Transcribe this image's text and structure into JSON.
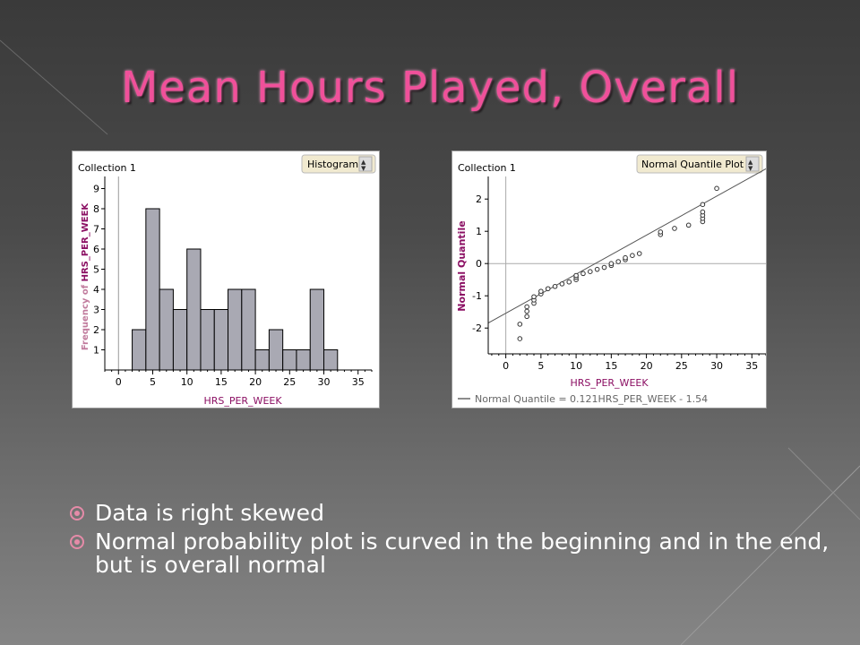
{
  "slide": {
    "title": "Mean Hours Played, Overall",
    "bullets": [
      "Data is right skewed",
      "Normal probability plot is curved in the beginning and in the end, but is overall normal"
    ]
  },
  "colors": {
    "title": "#f0509a",
    "bar": "#a9a9b3",
    "point": "#333333",
    "axis_label": "#8b0f63"
  },
  "histogram": {
    "collection_label": "Collection 1",
    "dropdown_value": "Histogram",
    "xlabel": "HRS_PER_WEEK",
    "ylabel_prefix": "Frequency of ",
    "ylabel_var": "HRS_PER_WEEK"
  },
  "qq": {
    "collection_label": "Collection 1",
    "dropdown_value": "Normal Quantile Plot",
    "xlabel": "HRS_PER_WEEK",
    "ylabel": "Normal Quantile",
    "legend": "Normal Quantile = 0.121HRS_PER_WEEK - 1.54"
  },
  "chart_data": [
    {
      "type": "bar",
      "title": "",
      "xlabel": "HRS_PER_WEEK",
      "ylabel": "Frequency of HRS_PER_WEEK",
      "bin_width": 2,
      "bins_start": [
        2,
        4,
        6,
        8,
        10,
        12,
        14,
        16,
        18,
        20,
        22,
        24,
        26,
        28,
        30
      ],
      "values": [
        2,
        8,
        4,
        3,
        6,
        3,
        3,
        4,
        4,
        1,
        2,
        1,
        1,
        4,
        1
      ],
      "xlim": [
        -2,
        37
      ],
      "ylim": [
        0,
        9.6
      ],
      "xticks": [
        0,
        5,
        10,
        15,
        20,
        25,
        30,
        35
      ],
      "yticks": [
        1,
        2,
        3,
        4,
        5,
        6,
        7,
        8,
        9
      ]
    },
    {
      "type": "scatter",
      "title": "",
      "xlabel": "HRS_PER_WEEK",
      "ylabel": "Normal Quantile",
      "xlim": [
        -2.5,
        37
      ],
      "ylim": [
        -2.8,
        2.7
      ],
      "xticks": [
        0,
        5,
        10,
        15,
        20,
        25,
        30,
        35
      ],
      "yticks": [
        -2,
        -1,
        0,
        1,
        2
      ],
      "fit_line": {
        "slope": 0.121,
        "intercept": -1.54
      },
      "x": [
        2,
        2,
        3,
        3,
        3,
        4,
        4,
        4,
        5,
        5,
        6,
        7,
        8,
        9,
        10,
        10,
        10,
        11,
        12,
        13,
        14,
        15,
        15,
        16,
        17,
        17,
        18,
        19,
        22,
        22,
        24,
        26,
        28,
        28,
        28,
        28,
        28,
        30
      ],
      "y": [
        -2.33,
        -1.88,
        -1.64,
        -1.48,
        -1.34,
        -1.23,
        -1.13,
        -1.03,
        -0.94,
        -0.86,
        -0.78,
        -0.71,
        -0.63,
        -0.57,
        -0.5,
        -0.43,
        -0.37,
        -0.31,
        -0.25,
        -0.18,
        -0.12,
        -0.06,
        0.0,
        0.06,
        0.12,
        0.18,
        0.25,
        0.31,
        0.9,
        0.98,
        1.09,
        1.19,
        1.3,
        1.4,
        1.5,
        1.6,
        1.83,
        2.33
      ]
    }
  ]
}
